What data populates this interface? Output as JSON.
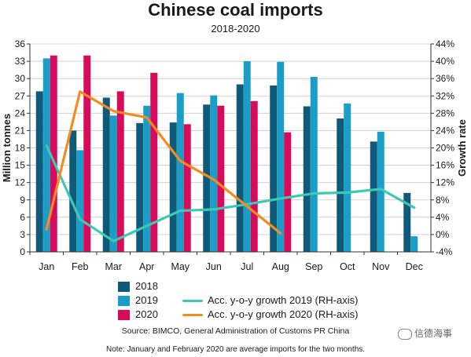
{
  "chart_data": {
    "type": "bar",
    "title": "Chinese coal imports",
    "subtitle": "2018-2020",
    "ylabel": "Million tonnes",
    "y2label": "Growth rate",
    "categories": [
      "Jan",
      "Feb",
      "Mar",
      "Apr",
      "May",
      "Jun",
      "Jul",
      "Aug",
      "Sep",
      "Oct",
      "Nov",
      "Dec"
    ],
    "ylim": [
      0,
      36
    ],
    "yticks": [
      "0",
      "3",
      "6",
      "9",
      "12",
      "15",
      "18",
      "21",
      "24",
      "27",
      "30",
      "33",
      "36"
    ],
    "y2lim": [
      -4,
      44
    ],
    "y2ticks": [
      "-4%",
      "0%",
      "4%",
      "8%",
      "12%",
      "16%",
      "20%",
      "24%",
      "28%",
      "32%",
      "36%",
      "40%",
      "44%"
    ],
    "series": [
      {
        "name": "2018",
        "color": "#0f5a78",
        "values": [
          27.8,
          21.0,
          26.7,
          22.3,
          22.4,
          25.5,
          29.0,
          28.8,
          25.2,
          23.1,
          19.1,
          10.2
        ]
      },
      {
        "name": "2019",
        "color": "#1a9ec8",
        "values": [
          33.5,
          17.6,
          23.6,
          25.3,
          27.5,
          27.1,
          33.0,
          32.9,
          30.3,
          25.7,
          20.8,
          2.7
        ]
      },
      {
        "name": "2020",
        "color": "#d80b5b",
        "values": [
          34.0,
          34.0,
          27.8,
          31.0,
          22.1,
          25.3,
          26.1,
          20.7,
          null,
          null,
          null,
          null
        ]
      }
    ],
    "lines": [
      {
        "name": "Acc. y-o-y growth 2019 (RH-axis)",
        "color": "#3ec9b4",
        "values": [
          20.5,
          3.5,
          -1.5,
          2.0,
          5.5,
          5.8,
          7.0,
          8.3,
          9.5,
          9.7,
          10.5,
          6.2
        ]
      },
      {
        "name": "Acc. y-o-y growth 2020 (RH-axis)",
        "color": "#f58a20",
        "values": [
          1.2,
          33.0,
          28.5,
          27.0,
          17.0,
          12.7,
          6.5,
          0.3,
          null,
          null,
          null,
          null
        ]
      }
    ]
  },
  "legend": {
    "s2018": "2018",
    "s2019": "2019",
    "s2020": "2020",
    "g2019": "Acc. y-o-y growth 2019 (RH-axis)",
    "g2020": "Acc. y-o-y growth 2020 (RH-axis)"
  },
  "source": "Source: BIMCO, General Administration of Customs PR China",
  "note": "Note: January and February 2020 are average imports for the two months.",
  "watermark": "信德海事"
}
